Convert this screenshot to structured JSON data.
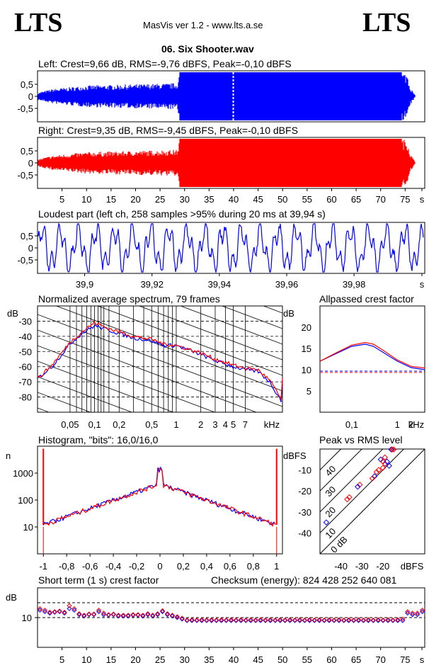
{
  "header": {
    "logo_left": "LTS",
    "logo_right": "LTS",
    "app_title": "MasVis ver 1.2 - www.lts.a.se",
    "file_title": "06. Six Shooter.wav"
  },
  "colors": {
    "left": "#0000ff",
    "right": "#ff0000"
  },
  "panels": {
    "left": {
      "title": "Left: Crest=9,66 dB, RMS=-9,76 dBFS, Peak=-0,10 dBFS"
    },
    "right": {
      "title": "Right: Crest=9,35 dB, RMS=-9,45 dBFS, Peak=-0,10 dBFS"
    },
    "loudest": {
      "title": "Loudest part (left  ch, 258 samples >95% during 20 ms at 39,94 s)"
    },
    "spectrum": {
      "title": "Normalized average spectrum, 79 frames"
    },
    "allpass": {
      "title": "Allpassed crest factor"
    },
    "histogram": {
      "title": "Histogram, \"bits\": 16,0/16,0"
    },
    "peakrms": {
      "title": "Peak vs RMS level"
    },
    "shortcrest": {
      "title": "Short term (1 s) crest factor",
      "checksum": "Checksum (energy):   824 428 252 640 081"
    }
  },
  "chart_data": [
    {
      "type": "area",
      "name_ref": "left-waveform",
      "x_ticks": [
        "5",
        "10",
        "15",
        "20",
        "25",
        "30",
        "35",
        "40",
        "45",
        "50",
        "55",
        "60",
        "65",
        "70",
        "75",
        "s"
      ],
      "y_ticks": [
        "0.5",
        "0",
        "-0.5"
      ],
      "ylim": [
        -1,
        1
      ],
      "xlim": [
        0,
        79
      ],
      "envelope": {
        "x": [
          0,
          3,
          10,
          20,
          28.5,
          29,
          40,
          50,
          60,
          70,
          74,
          75.5,
          76,
          77
        ],
        "peak": [
          0.15,
          0.3,
          0.45,
          0.5,
          0.55,
          1.0,
          1.0,
          1.0,
          1.0,
          1.0,
          1.0,
          0.95,
          0.4,
          0.05
        ]
      },
      "cursor_x": 39.94
    },
    {
      "type": "area",
      "name_ref": "right-waveform",
      "x_ticks": [
        "5",
        "10",
        "15",
        "20",
        "25",
        "30",
        "35",
        "40",
        "45",
        "50",
        "55",
        "60",
        "65",
        "70",
        "75",
        "s"
      ],
      "y_ticks": [
        "0.5",
        "0",
        "-0.5"
      ],
      "ylim": [
        -1,
        1
      ],
      "xlim": [
        0,
        79
      ],
      "envelope": {
        "x": [
          0,
          3,
          10,
          20,
          28.5,
          29,
          40,
          50,
          60,
          70,
          74,
          75.5,
          76,
          77
        ],
        "peak": [
          0.15,
          0.3,
          0.45,
          0.5,
          0.55,
          1.0,
          1.0,
          1.0,
          1.0,
          1.0,
          1.0,
          0.95,
          0.4,
          0.05
        ]
      }
    },
    {
      "type": "line",
      "name_ref": "loudest-part",
      "x_ticks": [
        "39,9",
        "39,92",
        "39,94",
        "39,96",
        "39,98",
        "s"
      ],
      "x_tick_values": [
        39.9,
        39.92,
        39.94,
        39.96,
        39.98
      ],
      "y_ticks": [
        "0.5",
        "0",
        "-0.5"
      ],
      "ylim": [
        -1,
        1
      ],
      "xlim": [
        39.886,
        40.001
      ]
    },
    {
      "type": "line",
      "name_ref": "spectrum",
      "ylabel": "dB",
      "y_ticks": [
        "-30",
        "-40",
        "-50",
        "-60",
        "-70",
        "-80"
      ],
      "x_ticks": [
        "0,05",
        "0,1",
        "0,2",
        "0,5",
        "1",
        "2",
        "3",
        "4",
        "5",
        "7",
        "kHz"
      ],
      "x_tick_values": [
        0.05,
        0.1,
        0.2,
        0.5,
        1,
        2,
        3,
        4,
        5,
        7
      ],
      "xlim_log": [
        0.02,
        20
      ],
      "ylim": [
        -90,
        -20
      ],
      "series": [
        {
          "name": "left",
          "x": [
            0.02,
            0.03,
            0.05,
            0.07,
            0.1,
            0.15,
            0.2,
            0.3,
            0.5,
            0.7,
            1,
            2,
            3,
            5,
            7,
            10,
            14,
            20
          ],
          "values": [
            -68,
            -60,
            -45,
            -38,
            -33,
            -36,
            -38,
            -41,
            -43,
            -46,
            -46,
            -52,
            -56,
            -60,
            -62,
            -63,
            -70,
            -84
          ]
        },
        {
          "name": "right",
          "x": [
            0.02,
            0.03,
            0.05,
            0.07,
            0.1,
            0.15,
            0.2,
            0.3,
            0.5,
            0.7,
            1,
            2,
            3,
            5,
            7,
            10,
            14,
            20
          ],
          "values": [
            -68,
            -59,
            -44,
            -37,
            -31,
            -35,
            -37,
            -40,
            -42,
            -45,
            -46,
            -51,
            -55,
            -59,
            -61,
            -62,
            -69,
            -83
          ]
        }
      ]
    },
    {
      "type": "line",
      "name_ref": "allpassed-crest",
      "ylabel": "dB",
      "y_ticks": [
        "20",
        "15",
        "10",
        "5"
      ],
      "x_ticks": [
        "0,1",
        "1",
        "2",
        "kHz"
      ],
      "x_tick_values": [
        0.1,
        1,
        2
      ],
      "xlim_log": [
        0.02,
        4
      ],
      "ylim": [
        0,
        25
      ],
      "series": [
        {
          "name": "left",
          "x": [
            0.02,
            0.05,
            0.1,
            0.2,
            0.3,
            0.5,
            1,
            2,
            4
          ],
          "values": [
            12,
            14,
            15.5,
            16,
            15.5,
            14,
            12,
            10.5,
            10
          ]
        },
        {
          "name": "right",
          "x": [
            0.02,
            0.05,
            0.1,
            0.2,
            0.3,
            0.5,
            1,
            2,
            4
          ],
          "values": [
            12,
            14.2,
            15.8,
            16.4,
            16,
            14.5,
            12.3,
            10.8,
            10.4
          ]
        }
      ],
      "ref_lines": [
        9.66,
        9.35
      ]
    },
    {
      "type": "line",
      "name_ref": "histogram",
      "ylabel": "n",
      "y_ticks": [
        "1000",
        "100",
        "10"
      ],
      "x_ticks": [
        "-1",
        "-0,8",
        "-0,6",
        "-0,4",
        "-0,2",
        "0",
        "0,2",
        "0,4",
        "0,6",
        "0,8",
        "1"
      ],
      "x_tick_values": [
        -1,
        -0.8,
        -0.6,
        -0.4,
        -0.2,
        0,
        0.2,
        0.4,
        0.6,
        0.8,
        1
      ],
      "xlim": [
        -1.05,
        1.05
      ],
      "ylog_lim": [
        1,
        10000
      ]
    },
    {
      "type": "scatter",
      "name_ref": "peak-vs-rms",
      "ylabel": "dBFS",
      "xlabel": "dBFS",
      "y_ticks": [
        "-10",
        "-20",
        "-30",
        "-40"
      ],
      "x_ticks": [
        "-40",
        "-30",
        "-20",
        "dBFS"
      ],
      "x_tick_values": [
        -40,
        -30,
        -20
      ],
      "diag_labels": [
        "40",
        "30",
        "20",
        "10",
        "0 dB"
      ],
      "xlim": [
        -50,
        0
      ],
      "ylim": [
        -50,
        0
      ],
      "points": [
        [
          -16,
          -0.2
        ],
        [
          -15.5,
          -0.2
        ],
        [
          -14.8,
          -0.2
        ],
        [
          -21,
          -5
        ],
        [
          -20,
          -6
        ],
        [
          -19,
          -7
        ],
        [
          -18,
          -6
        ],
        [
          -20,
          -9
        ],
        [
          -22,
          -10
        ],
        [
          -24,
          -13
        ],
        [
          -25,
          -14
        ],
        [
          -31,
          -17
        ],
        [
          -32,
          -18
        ],
        [
          -36,
          -23
        ],
        [
          -37,
          -24
        ],
        [
          -47,
          -35
        ],
        [
          -23,
          -11
        ],
        [
          -19,
          -4
        ],
        [
          -17,
          -8
        ]
      ]
    },
    {
      "type": "scatter",
      "name_ref": "short-term-crest",
      "ylabel": "dB",
      "y_ticks": [
        "10"
      ],
      "x_ticks": [
        "5",
        "10",
        "15",
        "20",
        "25",
        "30",
        "35",
        "40",
        "45",
        "50",
        "55",
        "60",
        "65",
        "70",
        "75",
        "s"
      ],
      "xlim": [
        0,
        79
      ],
      "ylim": [
        0,
        20
      ],
      "ref_lines": [
        15,
        10
      ],
      "left": [
        12.5,
        12,
        11.5,
        11.8,
        12,
        11.5,
        13,
        12.5,
        11,
        10.5,
        11,
        11,
        12,
        11,
        10.8,
        11,
        10.5,
        10.5,
        10.5,
        10.8,
        10.8,
        10.5,
        11,
        10.5,
        11,
        12,
        11,
        10.5,
        10,
        9.5,
        9,
        9,
        9,
        9,
        9,
        9,
        9,
        9,
        9,
        9,
        9,
        9,
        9,
        9,
        9,
        9,
        9,
        9,
        9,
        9,
        9,
        9,
        9,
        9,
        9,
        9,
        9,
        9,
        9,
        9,
        9,
        9,
        9,
        9,
        9,
        9,
        9,
        9,
        9,
        9,
        9,
        9,
        9,
        9,
        9,
        11.5,
        11,
        11,
        12
      ],
      "right": [
        13,
        12.5,
        11.8,
        12,
        12.2,
        11.8,
        14,
        13,
        11.3,
        10.8,
        11.2,
        11.2,
        12.5,
        11.5,
        11,
        11.2,
        10.8,
        10.8,
        10.8,
        11,
        11,
        10.8,
        11.3,
        10.8,
        11.3,
        12.3,
        11.3,
        10.8,
        10.3,
        9.8,
        9.2,
        9.3,
        9.2,
        9.3,
        9.2,
        9.3,
        9.2,
        9.3,
        9.2,
        9.3,
        9.2,
        9.3,
        9.2,
        9.3,
        9.2,
        9.3,
        9.2,
        9.3,
        9.2,
        9.3,
        9.2,
        9.3,
        9.2,
        9.3,
        9.2,
        9.3,
        9.2,
        9.3,
        9.2,
        9.3,
        9.2,
        9.3,
        9.2,
        9.3,
        9.2,
        9.3,
        9.2,
        9.3,
        9.2,
        9.3,
        9.2,
        9.3,
        9.2,
        9.3,
        9.5,
        12,
        11.5,
        11.5,
        12.5
      ]
    }
  ]
}
